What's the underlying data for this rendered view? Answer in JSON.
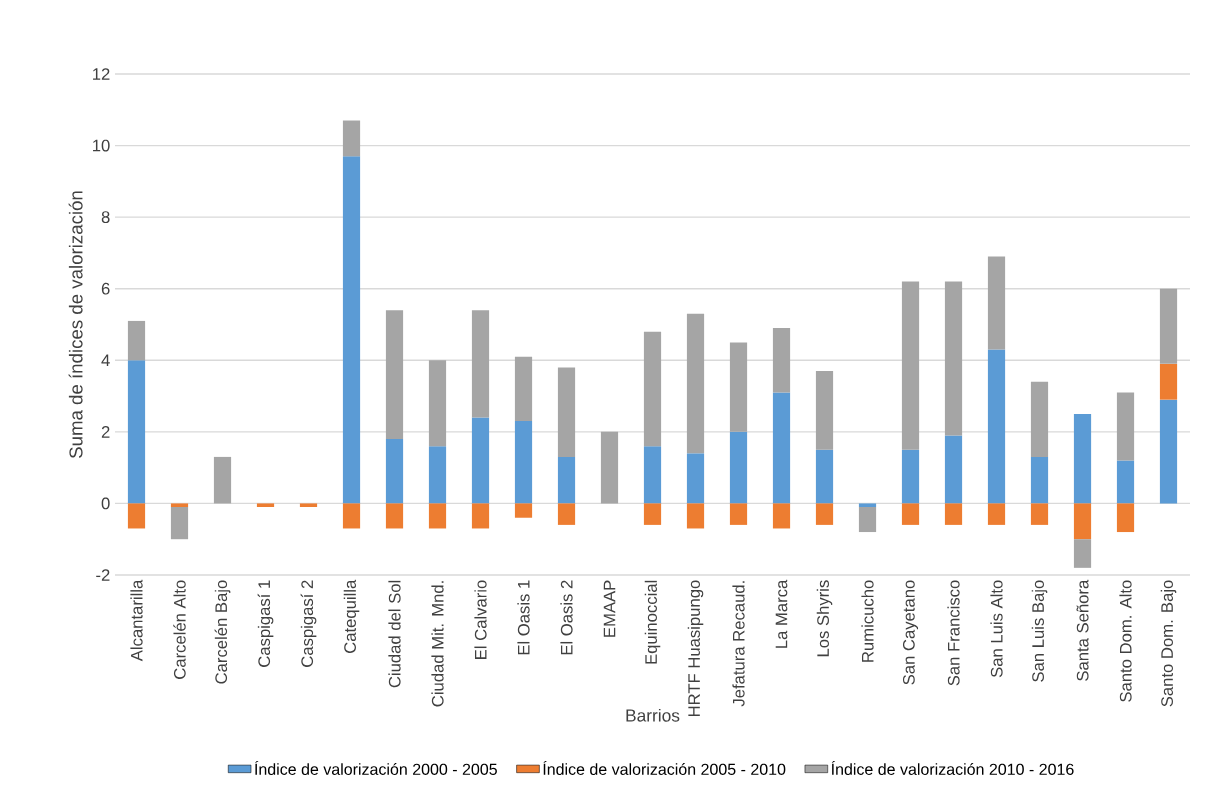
{
  "chart_data": {
    "type": "bar",
    "stacked": true,
    "xlabel": "Barrios",
    "ylabel": "Suma de índices de valorización",
    "categories": [
      "Alcantarilla",
      "Carcelén  Alto",
      "Carcelén Bajo",
      "Caspigasí 1",
      "Caspigasí 2",
      "Catequilla",
      "Ciudad del Sol",
      "Ciudad Mit. Mnd.",
      "El Calvario",
      "El Oasis 1",
      "El Oasis 2",
      "EMAAP",
      "Equinoccial",
      "HRTF Huasipungo",
      "Jefatura Recaud.",
      "La Marca",
      "Los Shyris",
      "Rumicucho",
      "San Cayetano",
      "San Francisco",
      "San Luis Alto",
      "San Luis Bajo",
      "Santa Señora",
      "Santo Dom. Alto",
      "Santo Dom. Bajo"
    ],
    "series": [
      {
        "name": "Índice de valorización 2000 - 2005",
        "color": "#5b9bd5",
        "values": [
          4.0,
          0,
          0,
          0,
          0,
          9.7,
          1.8,
          1.6,
          2.4,
          2.3,
          1.3,
          0,
          1.6,
          1.4,
          2.0,
          3.1,
          1.5,
          -0.1,
          1.5,
          1.9,
          4.3,
          1.3,
          2.5,
          1.2,
          2.9
        ]
      },
      {
        "name": "Índice de valorización 2005 - 2010",
        "color": "#ed7d31",
        "values": [
          -0.7,
          -0.1,
          0,
          -0.1,
          -0.1,
          -0.7,
          -0.7,
          -0.7,
          -0.7,
          -0.4,
          -0.6,
          0,
          -0.6,
          -0.7,
          -0.6,
          -0.7,
          -0.6,
          0,
          -0.6,
          -0.6,
          -0.6,
          -0.6,
          -1.0,
          -0.8,
          1.0
        ]
      },
      {
        "name": "Índice de valorización 2010 - 2016",
        "color": "#a5a5a5",
        "values": [
          1.1,
          -0.9,
          1.3,
          0,
          0,
          1.0,
          3.6,
          2.4,
          3.0,
          1.8,
          2.5,
          2.0,
          3.2,
          3.9,
          2.5,
          1.8,
          2.2,
          -0.7,
          4.7,
          4.3,
          2.6,
          2.1,
          -0.8,
          1.9,
          2.1
        ]
      }
    ],
    "ylim": [
      -2,
      12
    ],
    "yticks": [
      -2,
      0,
      2,
      4,
      6,
      8,
      10,
      12
    ],
    "grid": "y",
    "legend": "bottom"
  }
}
